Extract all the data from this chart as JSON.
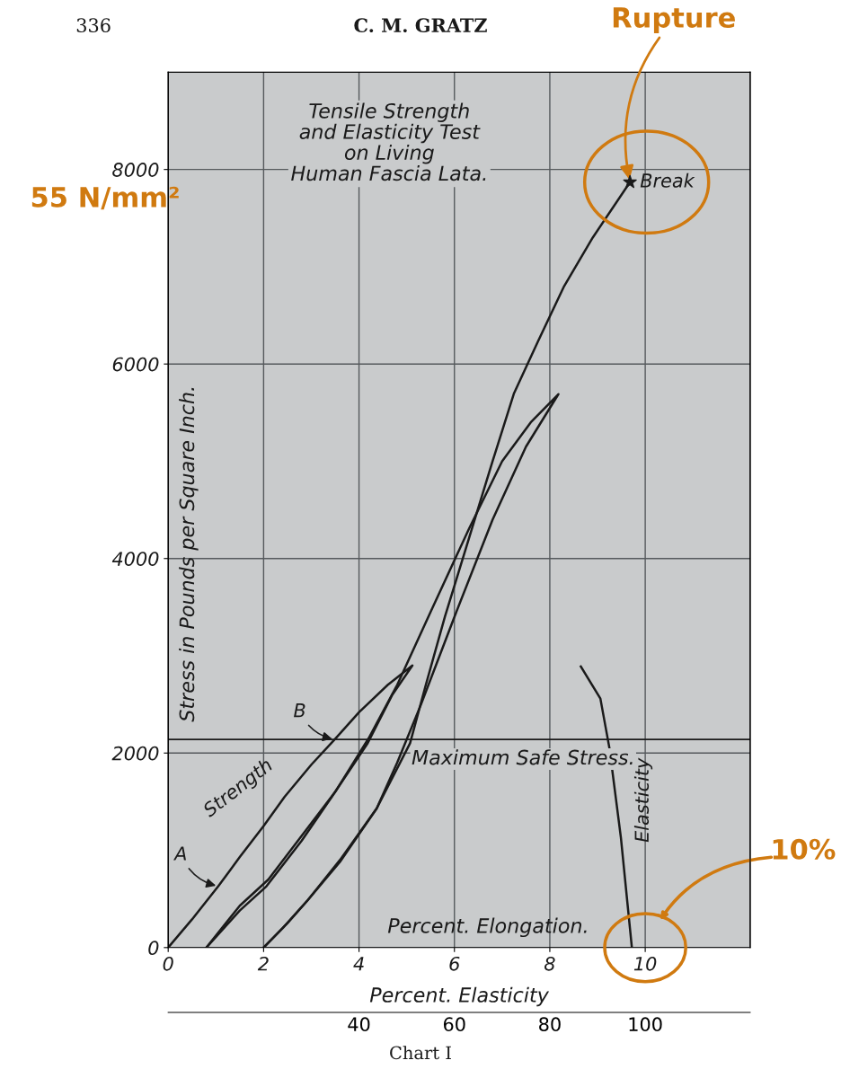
{
  "chart_data": {
    "type": "line",
    "title": "Tensile Strength\nand Elasticity Test\non Living\nHuman Fascia Lata.",
    "xlabel": "Percent. Elongation.",
    "ylabel": "Stress in Pounds per Square Inch.",
    "x2label": "Percent. Elasticity",
    "xlim": [
      0,
      12.2
    ],
    "xticks": [
      0,
      2,
      4,
      6,
      8,
      10
    ],
    "ylim": [
      0,
      9000
    ],
    "yticks": [
      0,
      2000,
      4000,
      6000,
      8000
    ],
    "x2lim": [
      0,
      122
    ],
    "x2ticks": [
      40,
      60,
      80,
      100
    ],
    "grid": true,
    "marker": "none",
    "line_style": "solid",
    "legend": false,
    "series": [
      {
        "color": "#1a1a1a",
        "x": [
          0,
          0.5,
          1.05,
          1.5,
          2.0,
          2.44,
          3.0,
          3.49,
          4.0,
          4.6,
          5.12,
          4.7,
          4.18,
          3.43,
          2.8,
          2.06,
          1.5,
          0.8
        ],
        "values": [
          0,
          290,
          630,
          930,
          1250,
          1550,
          1880,
          2140,
          2420,
          2700,
          2900,
          2600,
          2100,
          1550,
          1100,
          630,
          380,
          0
        ]
      },
      {
        "color": "#1a1a1a",
        "x": [
          0.8,
          1.5,
          2.1,
          2.8,
          3.5,
          4.2,
          4.8,
          5.5,
          6.3,
          7.0,
          7.6,
          8.18,
          7.5,
          6.8,
          6.0,
          5.3,
          4.8,
          4.37,
          3.6,
          2.93,
          2.4,
          2.0
        ],
        "values": [
          0,
          430,
          700,
          1150,
          1600,
          2150,
          2700,
          3450,
          4300,
          5000,
          5400,
          5690,
          5150,
          4400,
          3400,
          2500,
          1900,
          1430,
          880,
          490,
          200,
          0
        ]
      },
      {
        "color": "#1a1a1a",
        "x": [
          2.0,
          2.5,
          2.93,
          3.6,
          4.37,
          5.07,
          5.4,
          5.8,
          6.3,
          6.8,
          7.25,
          7.75,
          8.3,
          8.9,
          9.68
        ],
        "values": [
          0,
          250,
          490,
          900,
          1430,
          2100,
          2700,
          3400,
          4200,
          5000,
          5700,
          6230,
          6800,
          7300,
          7870
        ]
      },
      {
        "color": "#1a1a1a",
        "x": [
          8.65,
          9.06,
          9.25,
          9.49,
          9.72
        ],
        "values": [
          2890,
          2560,
          2050,
          1130,
          0
        ]
      },
      {
        "type": "scatter",
        "marker": "star",
        "color": "#1a1a1a",
        "x": [
          9.68
        ],
        "values": [
          7870
        ]
      }
    ],
    "ref_lines": [
      {
        "axis": "y",
        "value": 2140,
        "label": "Maximum Safe Stress.",
        "color": "#1a1a1a"
      }
    ],
    "annotations": [
      {
        "text": "Break",
        "x": 9.68,
        "y": 7870
      },
      {
        "text": "A",
        "x": 1.05,
        "y": 630
      },
      {
        "text": "B",
        "x": 3.49,
        "y": 2140
      },
      {
        "text": "Strength",
        "x": 2.0,
        "y": 1250
      },
      {
        "text": "Elasticity",
        "x": 9.49,
        "y": 1130
      },
      {
        "text": "Rupture",
        "x": 9.68,
        "y": 7870
      },
      "55 N/mm²",
      "10%",
      "336",
      "C. M. GRATZ",
      "Chart I"
    ]
  }
}
